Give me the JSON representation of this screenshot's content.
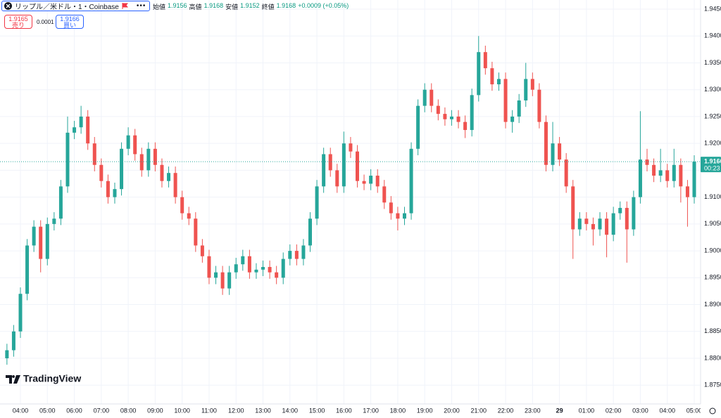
{
  "toolbar": {
    "symbol": "リップル／米ドル・1・Coinbase",
    "open_label": "始値",
    "open": "1.9156",
    "high_label": "高値",
    "high": "1.9168",
    "low_label": "安値",
    "low": "1.9152",
    "close_label": "終値",
    "close": "1.9168",
    "change": "+0.0009 (+0.05%)"
  },
  "trade": {
    "sell_price": "1.9165",
    "sell": "売り",
    "spread": "0.0001",
    "buy_price": "1.9166",
    "buy": "買い"
  },
  "logo": "TradingView",
  "chart_data": {
    "type": "candlestick",
    "up_color": "#26a69a",
    "down_color": "#ef5350",
    "grid": true,
    "categories": [
      null,
      null,
      "04:00",
      null,
      null,
      null,
      "05:00",
      null,
      null,
      null,
      "06:00",
      null,
      null,
      null,
      "07:00",
      null,
      null,
      null,
      "08:00",
      null,
      null,
      null,
      "09:00",
      null,
      null,
      null,
      "10:00",
      null,
      null,
      null,
      "11:00",
      null,
      null,
      null,
      "12:00",
      null,
      null,
      null,
      "13:00",
      null,
      null,
      null,
      "14:00",
      null,
      null,
      null,
      "15:00",
      null,
      null,
      null,
      "16:00",
      null,
      null,
      null,
      "17:00",
      null,
      null,
      null,
      "18:00",
      null,
      null,
      null,
      "19:00",
      null,
      null,
      null,
      "20:00",
      null,
      null,
      null,
      "21:00",
      null,
      null,
      null,
      "22:00",
      null,
      null,
      null,
      "23:00",
      null,
      null,
      null,
      "29",
      null,
      null,
      null,
      "01:00",
      null,
      null,
      null,
      "02:00",
      null,
      null,
      null,
      "03:00",
      null,
      null,
      null,
      "04:00",
      null,
      null,
      null,
      "05:00"
    ],
    "open": [
      1.88,
      1.8815,
      1.885,
      1.892,
      1.901,
      1.9045,
      1.8985,
      1.905,
      1.906,
      1.912,
      1.922,
      1.923,
      1.925,
      1.92,
      1.916,
      1.913,
      1.91,
      1.9115,
      1.919,
      1.9215,
      1.918,
      1.915,
      1.919,
      1.916,
      1.913,
      1.9145,
      1.91,
      1.907,
      1.906,
      1.901,
      1.899,
      1.895,
      1.896,
      1.893,
      1.896,
      1.8975,
      1.899,
      1.896,
      1.8965,
      1.897,
      1.896,
      1.895,
      1.8985,
      1.9,
      1.8985,
      1.901,
      1.906,
      1.912,
      1.918,
      1.915,
      1.912,
      1.92,
      1.9185,
      1.913,
      1.9125,
      1.914,
      1.912,
      1.909,
      1.907,
      1.906,
      1.907,
      1.919,
      1.927,
      1.93,
      1.927,
      1.9255,
      1.9245,
      1.925,
      1.924,
      1.9225,
      1.929,
      1.937,
      1.934,
      1.931,
      1.932,
      1.924,
      1.925,
      1.928,
      1.932,
      1.93,
      1.924,
      1.916,
      1.92,
      1.917,
      1.912,
      1.904,
      1.906,
      1.905,
      1.904,
      1.906,
      1.903,
      1.907,
      1.908,
      1.904,
      1.91,
      1.917,
      1.916,
      1.914,
      1.915,
      1.913,
      1.916,
      1.912,
      1.91
    ],
    "high": [
      1.8827,
      1.8862,
      1.8932,
      1.9022,
      1.9057,
      1.9057,
      1.9062,
      1.9072,
      1.9132,
      1.925,
      1.9242,
      1.927,
      1.9262,
      1.9212,
      1.9172,
      1.9142,
      1.9127,
      1.9202,
      1.923,
      1.9227,
      1.9192,
      1.9202,
      1.9202,
      1.9172,
      1.9157,
      1.9157,
      1.9112,
      1.9082,
      1.9072,
      1.9022,
      1.9002,
      1.8972,
      1.8972,
      1.8972,
      1.8987,
      1.9002,
      1.9002,
      1.8977,
      1.8982,
      1.8982,
      1.8972,
      1.8997,
      1.9012,
      1.9012,
      1.9022,
      1.9072,
      1.9132,
      1.9192,
      1.9192,
      1.9162,
      1.9222,
      1.9212,
      1.9197,
      1.9142,
      1.9152,
      1.9152,
      1.9132,
      1.9102,
      1.9082,
      1.9082,
      1.9202,
      1.9282,
      1.9312,
      1.9312,
      1.9282,
      1.9267,
      1.9262,
      1.9262,
      1.9252,
      1.9302,
      1.94,
      1.9382,
      1.9352,
      1.9332,
      1.9332,
      1.9262,
      1.9292,
      1.935,
      1.9332,
      1.9312,
      1.9252,
      1.924,
      1.9212,
      1.9182,
      1.9132,
      1.9072,
      1.9072,
      1.9062,
      1.9072,
      1.9072,
      1.9082,
      1.9092,
      1.9092,
      1.9112,
      1.926,
      1.919,
      1.9172,
      1.919,
      1.9162,
      1.919,
      1.9172,
      1.9132,
      1.9178
    ],
    "low": [
      1.8788,
      1.8803,
      1.8838,
      1.8908,
      1.8998,
      1.896,
      1.8973,
      1.9038,
      1.9048,
      1.9108,
      1.9208,
      1.9218,
      1.9188,
      1.9148,
      1.9118,
      1.9088,
      1.9088,
      1.9103,
      1.9178,
      1.9168,
      1.9138,
      1.9138,
      1.9148,
      1.9118,
      1.9118,
      1.9088,
      1.9058,
      1.9048,
      1.8998,
      1.8978,
      1.8938,
      1.8938,
      1.8918,
      1.8918,
      1.8948,
      1.8963,
      1.8948,
      1.8948,
      1.8953,
      1.8948,
      1.8938,
      1.8938,
      1.8973,
      1.8973,
      1.8973,
      1.8998,
      1.9048,
      1.9108,
      1.9138,
      1.9108,
      1.9108,
      1.9173,
      1.9118,
      1.9113,
      1.9113,
      1.9108,
      1.9078,
      1.9058,
      1.9038,
      1.9048,
      1.9058,
      1.9178,
      1.9258,
      1.9258,
      1.9243,
      1.9233,
      1.9233,
      1.9228,
      1.921,
      1.9213,
      1.9278,
      1.9328,
      1.9298,
      1.9298,
      1.9228,
      1.922,
      1.9238,
      1.9268,
      1.9288,
      1.9228,
      1.9148,
      1.9148,
      1.9158,
      1.9108,
      1.8985,
      1.9028,
      1.9038,
      1.901,
      1.9028,
      1.8988,
      1.9018,
      1.9058,
      1.8978,
      1.9028,
      1.9088,
      1.9148,
      1.9128,
      1.9128,
      1.9118,
      1.9118,
      1.909,
      1.9045,
      1.9088
    ],
    "close": [
      1.8815,
      1.885,
      1.892,
      1.901,
      1.9045,
      1.8985,
      1.905,
      1.906,
      1.912,
      1.922,
      1.923,
      1.925,
      1.92,
      1.916,
      1.913,
      1.91,
      1.9115,
      1.919,
      1.9215,
      1.918,
      1.915,
      1.919,
      1.916,
      1.913,
      1.9145,
      1.91,
      1.907,
      1.906,
      1.901,
      1.899,
      1.895,
      1.896,
      1.893,
      1.896,
      1.8975,
      1.899,
      1.896,
      1.8965,
      1.897,
      1.896,
      1.895,
      1.8985,
      1.9,
      1.8985,
      1.901,
      1.906,
      1.912,
      1.918,
      1.915,
      1.912,
      1.92,
      1.9185,
      1.913,
      1.9125,
      1.914,
      1.912,
      1.909,
      1.907,
      1.906,
      1.907,
      1.919,
      1.927,
      1.93,
      1.927,
      1.9255,
      1.9245,
      1.925,
      1.924,
      1.9225,
      1.929,
      1.937,
      1.934,
      1.931,
      1.932,
      1.924,
      1.925,
      1.928,
      1.932,
      1.93,
      1.924,
      1.916,
      1.92,
      1.917,
      1.912,
      1.904,
      1.906,
      1.905,
      1.904,
      1.906,
      1.903,
      1.907,
      1.908,
      1.904,
      1.91,
      1.917,
      1.916,
      1.914,
      1.915,
      1.913,
      1.916,
      1.912,
      1.91,
      1.9166
    ],
    "ylim": [
      1.8715,
      1.9467
    ],
    "yticks": [
      {
        "value": 1.875,
        "label": "1.8750"
      },
      {
        "value": 1.88,
        "label": "1.8800"
      },
      {
        "value": 1.885,
        "label": "1.8850"
      },
      {
        "value": 1.89,
        "label": "1.8900"
      },
      {
        "value": 1.895,
        "label": "1.8950"
      },
      {
        "value": 1.9,
        "label": "1.9000"
      },
      {
        "value": 1.905,
        "label": "1.9050"
      },
      {
        "value": 1.91,
        "label": "1.9100"
      },
      {
        "value": 1.915,
        "label": "1.9150"
      },
      {
        "value": 1.92,
        "label": "1.9200"
      },
      {
        "value": 1.925,
        "label": "1.9250"
      },
      {
        "value": 1.93,
        "label": "1.9300"
      },
      {
        "value": 1.935,
        "label": "1.9350"
      },
      {
        "value": 1.94,
        "label": "1.9400"
      },
      {
        "value": 1.945,
        "label": "1.9450"
      }
    ],
    "last_price": {
      "value": 1.9166,
      "label": "1.9166"
    },
    "countdown": "00:23"
  }
}
